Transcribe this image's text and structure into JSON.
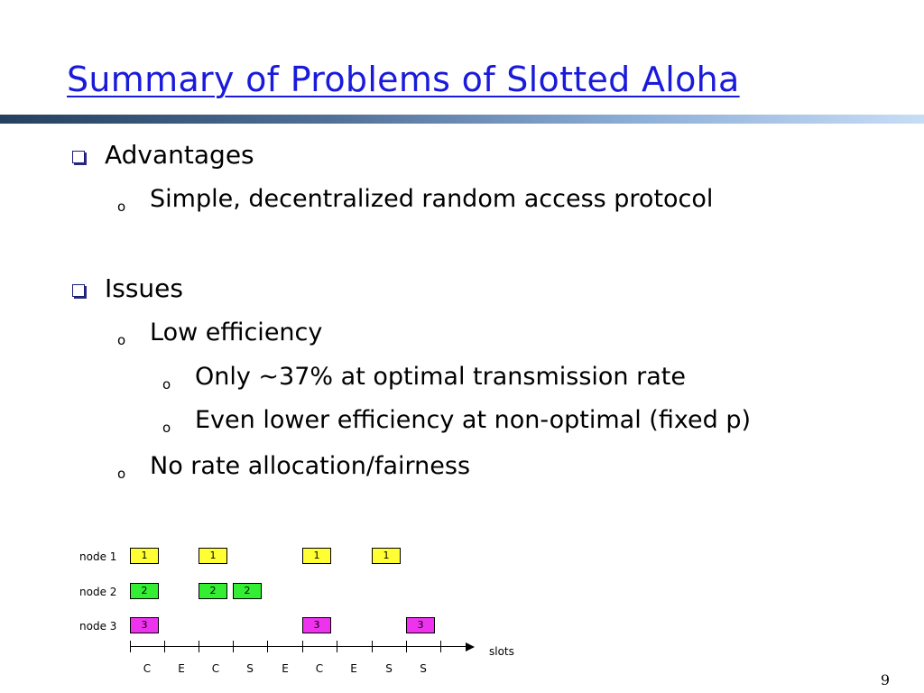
{
  "title": "Summary of Problems of Slotted Aloha",
  "advantages": {
    "heading": "Advantages",
    "items": [
      "Simple, decentralized random access protocol"
    ]
  },
  "issues": {
    "heading": "Issues",
    "low_efficiency": "Low efficiency",
    "sub_items": [
      "Only ~37% at optimal transmission rate",
      "Even lower efficiency at non-optimal (fixed p)"
    ],
    "no_rate": "No rate allocation/fairness"
  },
  "diagram": {
    "nodes": [
      "node 1",
      "node 2",
      "node 3"
    ],
    "box_labels": [
      "1",
      "2",
      "3"
    ],
    "colors": {
      "node1": "#ffff33",
      "node2": "#33ee33",
      "node3": "#ee33ee"
    },
    "axis_label": "slots",
    "slot_outcomes": [
      "C",
      "E",
      "C",
      "S",
      "E",
      "C",
      "E",
      "S",
      "S"
    ]
  },
  "page_number": "9"
}
